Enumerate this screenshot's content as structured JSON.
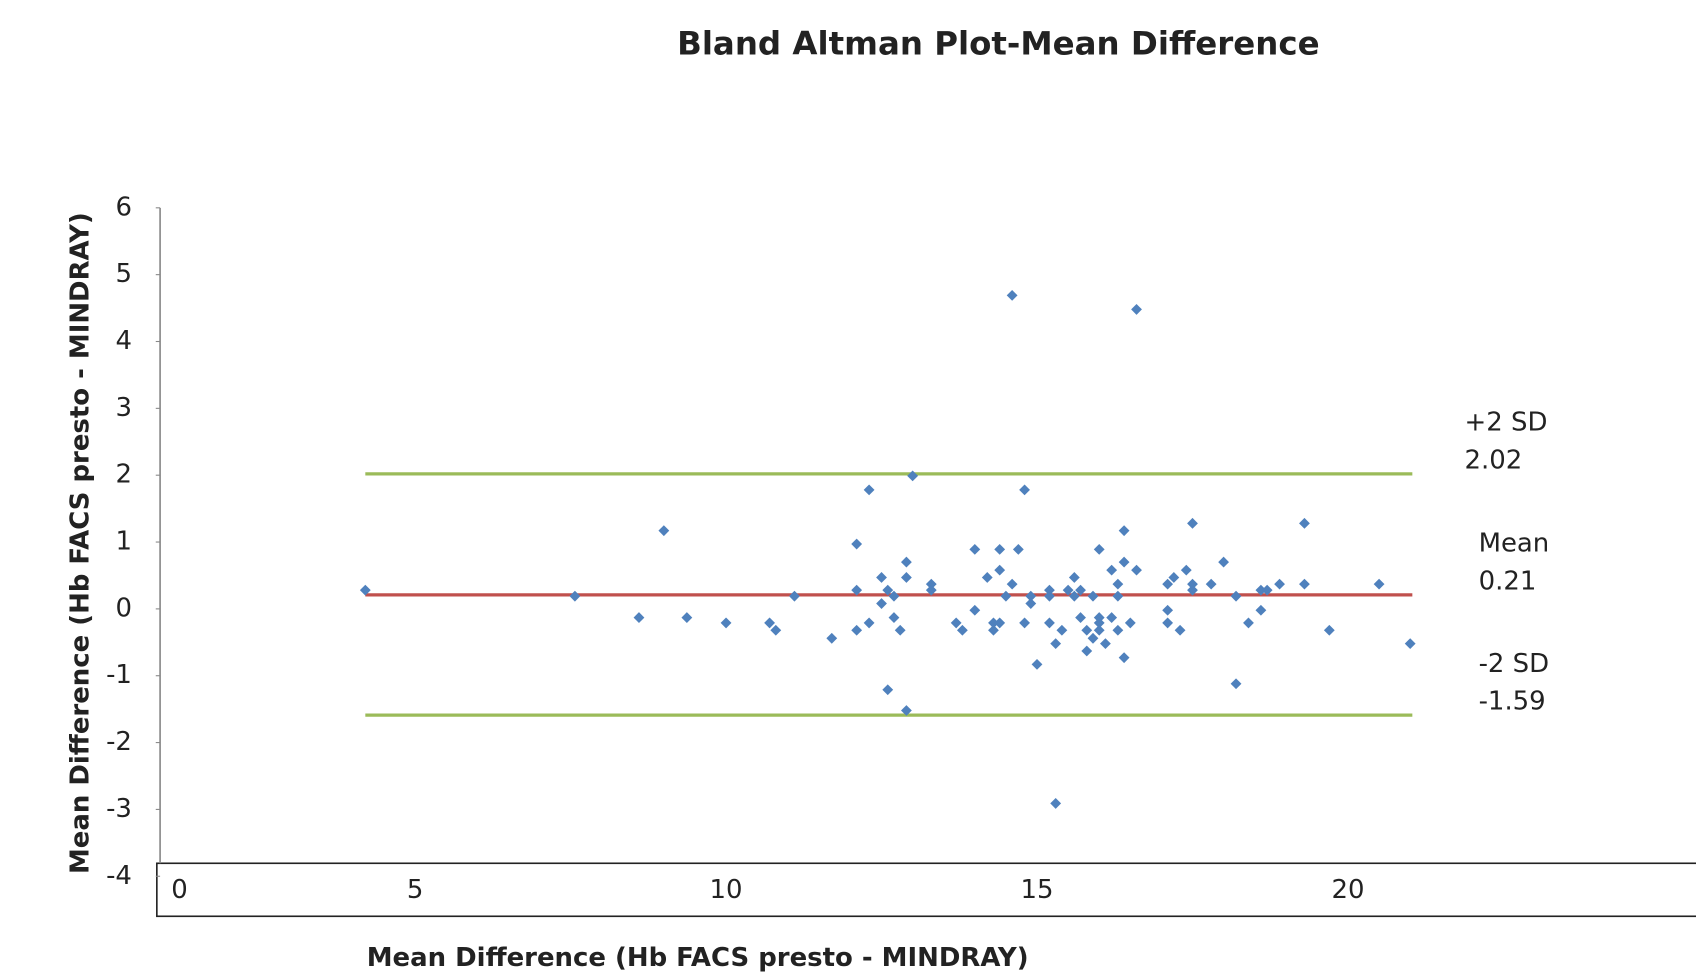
{
  "chart_data": {
    "type": "scatter",
    "title": "Bland Altman Plot-Mean Difference",
    "x_label": "Mean Difference (Hb FACS presto - MINDRAY)",
    "y_label": "Mean Difference (Hb FACS presto - MINDRAY)",
    "xlim": [
      0.9,
      25.5
    ],
    "ylim": [
      -4,
      6
    ],
    "xticks": [
      0,
      5,
      10,
      15,
      20
    ],
    "yticks": [
      -4,
      -3,
      -2,
      -1,
      0,
      1,
      2,
      3,
      4,
      5,
      6
    ],
    "grid": false,
    "series": [
      {
        "name": null,
        "color": "#4f81bd",
        "x": [
          4.2,
          7.57,
          8.6,
          9.0,
          9.37,
          10.0,
          10.7,
          10.8,
          11.1,
          11.7,
          12.1,
          12.1,
          12.1,
          12.3,
          12.3,
          12.5,
          12.5,
          12.6,
          12.6,
          12.7,
          12.7,
          12.8,
          12.9,
          12.9,
          12.9,
          13.0,
          13.3,
          13.3,
          13.7,
          13.8,
          14.0,
          14.0,
          14.2,
          14.3,
          14.3,
          14.4,
          14.4,
          14.4,
          14.5,
          14.6,
          14.6,
          14.7,
          14.8,
          14.8,
          14.9,
          14.9,
          15.0,
          15.2,
          15.2,
          15.2,
          15.3,
          15.3,
          15.4,
          15.5,
          15.6,
          15.6,
          15.7,
          15.7,
          15.8,
          15.8,
          15.9,
          15.9,
          16.0,
          16.0,
          16.0,
          16.0,
          16.1,
          16.2,
          16.2,
          16.3,
          16.3,
          16.3,
          16.4,
          16.4,
          16.4,
          16.5,
          16.6,
          16.6,
          17.1,
          17.1,
          17.1,
          17.2,
          17.3,
          17.4,
          17.5,
          17.5,
          17.5,
          17.8,
          18.0,
          18.2,
          18.2,
          18.4,
          18.6,
          18.6,
          18.7,
          18.9,
          19.3,
          19.3,
          19.7,
          20.5,
          21.0
        ],
        "values": [
          0.28,
          0.19,
          -0.13,
          1.17,
          -0.13,
          -0.21,
          -0.21,
          -0.32,
          0.19,
          -0.44,
          0.97,
          0.28,
          -0.32,
          1.78,
          -0.21,
          0.47,
          0.08,
          0.28,
          -1.21,
          -0.13,
          0.19,
          -0.32,
          0.7,
          0.47,
          -1.52,
          1.99,
          0.37,
          0.28,
          -0.21,
          -0.32,
          -0.02,
          0.89,
          0.47,
          -0.21,
          -0.32,
          0.58,
          -0.21,
          0.89,
          0.19,
          4.69,
          0.37,
          0.89,
          1.78,
          -0.21,
          0.08,
          0.19,
          -0.83,
          -0.21,
          0.28,
          0.19,
          -0.52,
          -2.91,
          -0.32,
          0.28,
          0.19,
          0.47,
          -0.13,
          0.28,
          -0.63,
          -0.32,
          -0.44,
          0.19,
          0.89,
          -0.21,
          -0.13,
          -0.32,
          -0.52,
          -0.13,
          0.58,
          0.37,
          0.19,
          -0.32,
          1.17,
          0.7,
          -0.73,
          -0.21,
          0.58,
          4.48,
          -0.02,
          -0.21,
          0.37,
          0.47,
          -0.32,
          0.58,
          1.28,
          0.28,
          0.37,
          0.37,
          0.7,
          -1.12,
          0.19,
          -0.21,
          0.28,
          -0.02,
          0.28,
          0.37,
          1.28,
          0.37,
          -0.32,
          0.37,
          -0.52
        ]
      }
    ],
    "reference_lines": [
      {
        "label": "+2 SD",
        "value": 2.02,
        "color": "#9bbb59"
      },
      {
        "label": "Mean",
        "value": 0.21,
        "color": "#c0504d"
      },
      {
        "label": "-2 SD",
        "value": -1.59,
        "color": "#9bbb59"
      }
    ]
  }
}
